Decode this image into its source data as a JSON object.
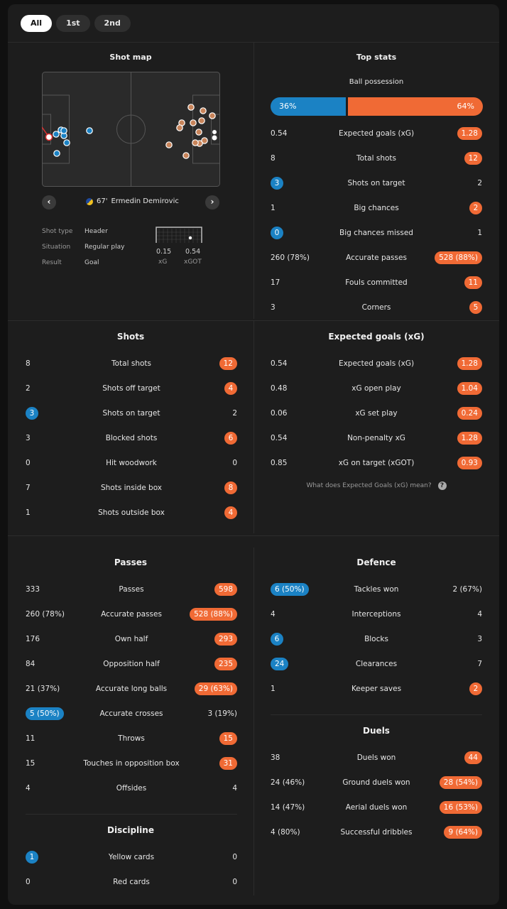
{
  "tabs": [
    {
      "label": "All",
      "active": true
    },
    {
      "label": "1st",
      "active": false
    },
    {
      "label": "2nd",
      "active": false
    }
  ],
  "shot_map": {
    "title": "Shot map",
    "player": {
      "minute": "67'",
      "name": "Ermedin Demirovic"
    },
    "details": [
      {
        "key": "Shot type",
        "value": "Header"
      },
      {
        "key": "Situation",
        "value": "Regular play"
      },
      {
        "key": "Result",
        "value": "Goal"
      }
    ],
    "xg": {
      "value": "0.15",
      "label": "xG"
    },
    "xgot": {
      "value": "0.54",
      "label": "xGOT"
    }
  },
  "top_stats": {
    "title": "Top stats",
    "possession": {
      "label": "Ball possession",
      "home": "36%",
      "away": "64%"
    },
    "rows": [
      {
        "label": "Expected goals (xG)",
        "home": "0.54",
        "away": "1.28",
        "hl": "away"
      },
      {
        "label": "Total shots",
        "home": "8",
        "away": "12",
        "hl": "away"
      },
      {
        "label": "Shots on target",
        "home": "3",
        "away": "2",
        "hl": "home"
      },
      {
        "label": "Big chances",
        "home": "1",
        "away": "2",
        "hl": "away"
      },
      {
        "label": "Big chances missed",
        "home": "0",
        "away": "1",
        "hl": "home"
      },
      {
        "label": "Accurate passes",
        "home": "260 (78%)",
        "away": "528 (88%)",
        "hl": "away"
      },
      {
        "label": "Fouls committed",
        "home": "17",
        "away": "11",
        "hl": "away"
      },
      {
        "label": "Corners",
        "home": "3",
        "away": "5",
        "hl": "away"
      }
    ]
  },
  "shots": {
    "title": "Shots",
    "rows": [
      {
        "label": "Total shots",
        "home": "8",
        "away": "12",
        "hl": "away"
      },
      {
        "label": "Shots off target",
        "home": "2",
        "away": "4",
        "hl": "away"
      },
      {
        "label": "Shots on target",
        "home": "3",
        "away": "2",
        "hl": "home"
      },
      {
        "label": "Blocked shots",
        "home": "3",
        "away": "6",
        "hl": "away"
      },
      {
        "label": "Hit woodwork",
        "home": "0",
        "away": "0",
        "hl": ""
      },
      {
        "label": "Shots inside box",
        "home": "7",
        "away": "8",
        "hl": "away"
      },
      {
        "label": "Shots outside box",
        "home": "1",
        "away": "4",
        "hl": "away"
      }
    ]
  },
  "xg_section": {
    "title": "Expected goals (xG)",
    "rows": [
      {
        "label": "Expected goals (xG)",
        "home": "0.54",
        "away": "1.28",
        "hl": "away"
      },
      {
        "label": "xG open play",
        "home": "0.48",
        "away": "1.04",
        "hl": "away"
      },
      {
        "label": "xG set play",
        "home": "0.06",
        "away": "0.24",
        "hl": "away"
      },
      {
        "label": "Non-penalty xG",
        "home": "0.54",
        "away": "1.28",
        "hl": "away"
      },
      {
        "label": "xG on target (xGOT)",
        "home": "0.85",
        "away": "0.93",
        "hl": "away"
      }
    ],
    "help": "What does Expected Goals (xG) mean?"
  },
  "passes": {
    "title": "Passes",
    "rows": [
      {
        "label": "Passes",
        "home": "333",
        "away": "598",
        "hl": "away"
      },
      {
        "label": "Accurate passes",
        "home": "260 (78%)",
        "away": "528 (88%)",
        "hl": "away"
      },
      {
        "label": "Own half",
        "home": "176",
        "away": "293",
        "hl": "away"
      },
      {
        "label": "Opposition half",
        "home": "84",
        "away": "235",
        "hl": "away"
      },
      {
        "label": "Accurate long balls",
        "home": "21 (37%)",
        "away": "29 (63%)",
        "hl": "away"
      },
      {
        "label": "Accurate crosses",
        "home": "5 (50%)",
        "away": "3 (19%)",
        "hl": "home"
      },
      {
        "label": "Throws",
        "home": "11",
        "away": "15",
        "hl": "away"
      },
      {
        "label": "Touches in opposition box",
        "home": "15",
        "away": "31",
        "hl": "away"
      },
      {
        "label": "Offsides",
        "home": "4",
        "away": "4",
        "hl": ""
      }
    ]
  },
  "discipline": {
    "title": "Discipline",
    "rows": [
      {
        "label": "Yellow cards",
        "home": "1",
        "away": "0",
        "hl": "home"
      },
      {
        "label": "Red cards",
        "home": "0",
        "away": "0",
        "hl": ""
      }
    ]
  },
  "defence": {
    "title": "Defence",
    "rows": [
      {
        "label": "Tackles won",
        "home": "6 (50%)",
        "away": "2 (67%)",
        "hl": "home"
      },
      {
        "label": "Interceptions",
        "home": "4",
        "away": "4",
        "hl": ""
      },
      {
        "label": "Blocks",
        "home": "6",
        "away": "3",
        "hl": "home"
      },
      {
        "label": "Clearances",
        "home": "24",
        "away": "7",
        "hl": "home"
      },
      {
        "label": "Keeper saves",
        "home": "1",
        "away": "2",
        "hl": "away"
      }
    ]
  },
  "duels": {
    "title": "Duels",
    "rows": [
      {
        "label": "Duels won",
        "home": "38",
        "away": "44",
        "hl": "away"
      },
      {
        "label": "Ground duels won",
        "home": "24 (46%)",
        "away": "28 (54%)",
        "hl": "away"
      },
      {
        "label": "Aerial duels won",
        "home": "14 (47%)",
        "away": "16 (53%)",
        "hl": "away"
      },
      {
        "label": "Successful dribbles",
        "home": "4 (80%)",
        "away": "9 (64%)",
        "hl": "away"
      }
    ]
  },
  "colors": {
    "home": "#1b82c4",
    "away": "#f06a35",
    "panel": "#1d1d1d"
  }
}
